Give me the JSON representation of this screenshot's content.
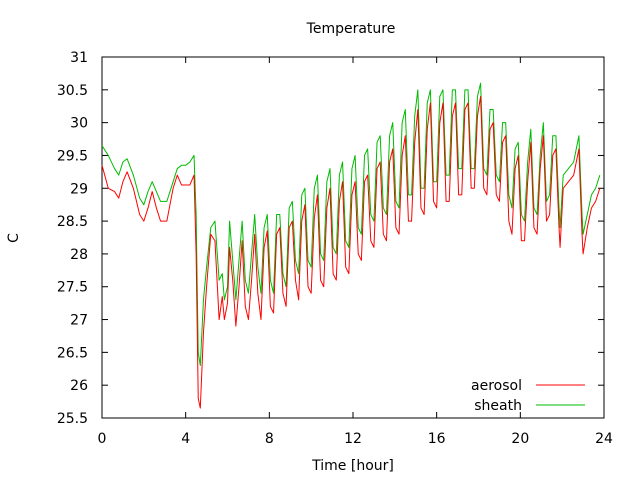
{
  "chart_data": {
    "type": "line",
    "title": "Temperature",
    "xlabel": "Time [hour]",
    "ylabel": "C",
    "xlim": [
      0,
      24
    ],
    "ylim": [
      25.5,
      31
    ],
    "x_ticks": [
      "0",
      "4",
      "8",
      "12",
      "16",
      "20",
      "24"
    ],
    "y_ticks": [
      "25.5",
      "26",
      "26.5",
      "27",
      "27.5",
      "28",
      "28.5",
      "29",
      "29.5",
      "30",
      "30.5",
      "31"
    ],
    "grid": false,
    "legend_position": "bottom-right",
    "series": [
      {
        "name": "aerosol",
        "color": "#ff0000",
        "points": [
          [
            0.0,
            29.35
          ],
          [
            0.3,
            29.0
          ],
          [
            0.6,
            28.95
          ],
          [
            0.8,
            28.85
          ],
          [
            1.0,
            29.1
          ],
          [
            1.2,
            29.25
          ],
          [
            1.5,
            29.0
          ],
          [
            1.8,
            28.6
          ],
          [
            2.0,
            28.5
          ],
          [
            2.2,
            28.7
          ],
          [
            2.4,
            28.95
          ],
          [
            2.6,
            28.7
          ],
          [
            2.8,
            28.5
          ],
          [
            3.1,
            28.5
          ],
          [
            3.4,
            29.0
          ],
          [
            3.6,
            29.2
          ],
          [
            3.8,
            29.05
          ],
          [
            4.0,
            29.05
          ],
          [
            4.2,
            29.05
          ],
          [
            4.4,
            29.2
          ],
          [
            4.5,
            28.0
          ],
          [
            4.6,
            25.8
          ],
          [
            4.7,
            25.65
          ],
          [
            4.85,
            26.8
          ],
          [
            5.0,
            27.5
          ],
          [
            5.2,
            28.3
          ],
          [
            5.4,
            28.2
          ],
          [
            5.6,
            27.0
          ],
          [
            5.75,
            27.35
          ],
          [
            5.85,
            27.0
          ],
          [
            6.0,
            27.25
          ],
          [
            6.1,
            28.1
          ],
          [
            6.25,
            27.6
          ],
          [
            6.4,
            26.9
          ],
          [
            6.55,
            27.5
          ],
          [
            6.7,
            28.2
          ],
          [
            6.85,
            27.2
          ],
          [
            7.0,
            27.0
          ],
          [
            7.15,
            27.6
          ],
          [
            7.3,
            28.3
          ],
          [
            7.45,
            27.4
          ],
          [
            7.6,
            27.0
          ],
          [
            7.75,
            28.1
          ],
          [
            7.9,
            28.35
          ],
          [
            8.05,
            27.2
          ],
          [
            8.2,
            27.1
          ],
          [
            8.35,
            28.3
          ],
          [
            8.5,
            28.4
          ],
          [
            8.65,
            27.4
          ],
          [
            8.8,
            27.2
          ],
          [
            8.95,
            28.4
          ],
          [
            9.1,
            28.5
          ],
          [
            9.25,
            27.6
          ],
          [
            9.4,
            27.3
          ],
          [
            9.55,
            28.5
          ],
          [
            9.7,
            28.75
          ],
          [
            9.85,
            27.5
          ],
          [
            10.0,
            27.4
          ],
          [
            10.15,
            28.55
          ],
          [
            10.3,
            28.9
          ],
          [
            10.45,
            27.6
          ],
          [
            10.6,
            27.5
          ],
          [
            10.75,
            28.7
          ],
          [
            10.9,
            29.0
          ],
          [
            11.05,
            27.7
          ],
          [
            11.2,
            27.6
          ],
          [
            11.35,
            28.8
          ],
          [
            11.5,
            29.1
          ],
          [
            11.65,
            27.8
          ],
          [
            11.8,
            27.7
          ],
          [
            11.95,
            28.9
          ],
          [
            12.1,
            29.1
          ],
          [
            12.25,
            28.0
          ],
          [
            12.4,
            27.9
          ],
          [
            12.55,
            29.1
          ],
          [
            12.7,
            29.2
          ],
          [
            12.85,
            28.2
          ],
          [
            13.0,
            28.1
          ],
          [
            13.15,
            29.3
          ],
          [
            13.3,
            29.4
          ],
          [
            13.45,
            28.3
          ],
          [
            13.6,
            28.2
          ],
          [
            13.75,
            29.4
          ],
          [
            13.9,
            29.6
          ],
          [
            14.05,
            28.4
          ],
          [
            14.2,
            28.3
          ],
          [
            14.35,
            29.5
          ],
          [
            14.5,
            29.8
          ],
          [
            14.65,
            28.5
          ],
          [
            14.8,
            28.5
          ],
          [
            14.95,
            29.7
          ],
          [
            15.1,
            30.2
          ],
          [
            15.25,
            28.7
          ],
          [
            15.4,
            28.6
          ],
          [
            15.55,
            29.9
          ],
          [
            15.7,
            30.3
          ],
          [
            15.85,
            28.8
          ],
          [
            16.0,
            28.7
          ],
          [
            16.15,
            30.0
          ],
          [
            16.3,
            30.3
          ],
          [
            16.45,
            28.8
          ],
          [
            16.6,
            28.8
          ],
          [
            16.75,
            30.1
          ],
          [
            16.9,
            30.3
          ],
          [
            17.05,
            28.9
          ],
          [
            17.2,
            28.9
          ],
          [
            17.35,
            30.2
          ],
          [
            17.5,
            30.3
          ],
          [
            17.65,
            29.0
          ],
          [
            17.8,
            29.0
          ],
          [
            17.95,
            30.1
          ],
          [
            18.1,
            30.4
          ],
          [
            18.25,
            29.0
          ],
          [
            18.4,
            28.9
          ],
          [
            18.55,
            29.9
          ],
          [
            18.7,
            30.0
          ],
          [
            18.85,
            28.9
          ],
          [
            19.0,
            28.8
          ],
          [
            19.15,
            29.7
          ],
          [
            19.3,
            29.8
          ],
          [
            19.45,
            28.5
          ],
          [
            19.6,
            28.3
          ],
          [
            19.75,
            29.3
          ],
          [
            19.9,
            29.5
          ],
          [
            20.05,
            28.2
          ],
          [
            20.2,
            28.2
          ],
          [
            20.35,
            29.1
          ],
          [
            20.5,
            29.7
          ],
          [
            20.65,
            28.4
          ],
          [
            20.8,
            28.3
          ],
          [
            20.95,
            29.3
          ],
          [
            21.1,
            29.8
          ],
          [
            21.25,
            28.5
          ],
          [
            21.4,
            28.6
          ],
          [
            21.55,
            29.5
          ],
          [
            21.7,
            29.6
          ],
          [
            21.85,
            28.4
          ],
          [
            21.9,
            28.1
          ],
          [
            22.05,
            29.0
          ],
          [
            22.3,
            29.1
          ],
          [
            22.55,
            29.2
          ],
          [
            22.8,
            29.6
          ],
          [
            22.95,
            28.3
          ],
          [
            23.0,
            28.0
          ],
          [
            23.2,
            28.4
          ],
          [
            23.4,
            28.7
          ],
          [
            23.6,
            28.8
          ],
          [
            23.8,
            29.0
          ]
        ]
      },
      {
        "name": "sheath",
        "color": "#00bb00",
        "points": [
          [
            0.0,
            29.65
          ],
          [
            0.3,
            29.5
          ],
          [
            0.6,
            29.3
          ],
          [
            0.8,
            29.2
          ],
          [
            1.0,
            29.4
          ],
          [
            1.2,
            29.45
          ],
          [
            1.5,
            29.2
          ],
          [
            1.8,
            28.85
          ],
          [
            2.0,
            28.75
          ],
          [
            2.2,
            28.95
          ],
          [
            2.4,
            29.1
          ],
          [
            2.6,
            28.95
          ],
          [
            2.8,
            28.8
          ],
          [
            3.1,
            28.8
          ],
          [
            3.4,
            29.1
          ],
          [
            3.6,
            29.3
          ],
          [
            3.8,
            29.35
          ],
          [
            4.0,
            29.35
          ],
          [
            4.2,
            29.4
          ],
          [
            4.4,
            29.5
          ],
          [
            4.5,
            28.6
          ],
          [
            4.6,
            26.5
          ],
          [
            4.7,
            26.3
          ],
          [
            4.85,
            27.3
          ],
          [
            5.0,
            27.8
          ],
          [
            5.2,
            28.4
          ],
          [
            5.4,
            28.5
          ],
          [
            5.6,
            27.6
          ],
          [
            5.75,
            27.7
          ],
          [
            5.85,
            27.3
          ],
          [
            6.0,
            27.5
          ],
          [
            6.1,
            28.5
          ],
          [
            6.25,
            27.9
          ],
          [
            6.4,
            27.3
          ],
          [
            6.55,
            27.9
          ],
          [
            6.7,
            28.5
          ],
          [
            6.85,
            27.6
          ],
          [
            7.0,
            27.4
          ],
          [
            7.15,
            28.0
          ],
          [
            7.3,
            28.6
          ],
          [
            7.45,
            27.8
          ],
          [
            7.6,
            27.4
          ],
          [
            7.75,
            28.4
          ],
          [
            7.9,
            28.6
          ],
          [
            8.05,
            27.6
          ],
          [
            8.2,
            27.4
          ],
          [
            8.35,
            28.6
          ],
          [
            8.5,
            28.6
          ],
          [
            8.65,
            27.7
          ],
          [
            8.8,
            27.5
          ],
          [
            8.95,
            28.7
          ],
          [
            9.1,
            28.8
          ],
          [
            9.25,
            27.9
          ],
          [
            9.4,
            27.7
          ],
          [
            9.55,
            28.9
          ],
          [
            9.7,
            29.0
          ],
          [
            9.85,
            27.9
          ],
          [
            10.0,
            27.8
          ],
          [
            10.15,
            29.0
          ],
          [
            10.3,
            29.2
          ],
          [
            10.45,
            28.0
          ],
          [
            10.6,
            27.9
          ],
          [
            10.75,
            29.1
          ],
          [
            10.9,
            29.3
          ],
          [
            11.05,
            28.1
          ],
          [
            11.2,
            28.0
          ],
          [
            11.35,
            29.2
          ],
          [
            11.5,
            29.4
          ],
          [
            11.65,
            28.2
          ],
          [
            11.8,
            28.1
          ],
          [
            11.95,
            29.3
          ],
          [
            12.1,
            29.5
          ],
          [
            12.25,
            28.4
          ],
          [
            12.4,
            28.3
          ],
          [
            12.55,
            29.5
          ],
          [
            12.7,
            29.6
          ],
          [
            12.85,
            28.6
          ],
          [
            13.0,
            28.5
          ],
          [
            13.15,
            29.7
          ],
          [
            13.3,
            29.8
          ],
          [
            13.45,
            28.7
          ],
          [
            13.6,
            28.6
          ],
          [
            13.75,
            29.8
          ],
          [
            13.9,
            30.0
          ],
          [
            14.05,
            28.8
          ],
          [
            14.2,
            28.7
          ],
          [
            14.35,
            30.0
          ],
          [
            14.5,
            30.2
          ],
          [
            14.65,
            28.9
          ],
          [
            14.8,
            28.9
          ],
          [
            14.95,
            30.1
          ],
          [
            15.1,
            30.5
          ],
          [
            15.25,
            29.0
          ],
          [
            15.4,
            29.0
          ],
          [
            15.55,
            30.3
          ],
          [
            15.7,
            30.5
          ],
          [
            15.85,
            29.1
          ],
          [
            16.0,
            29.1
          ],
          [
            16.15,
            30.4
          ],
          [
            16.3,
            30.5
          ],
          [
            16.45,
            29.2
          ],
          [
            16.6,
            29.2
          ],
          [
            16.75,
            30.5
          ],
          [
            16.9,
            30.5
          ],
          [
            17.05,
            29.3
          ],
          [
            17.2,
            29.3
          ],
          [
            17.35,
            30.5
          ],
          [
            17.5,
            30.5
          ],
          [
            17.65,
            29.3
          ],
          [
            17.8,
            29.3
          ],
          [
            17.95,
            30.4
          ],
          [
            18.1,
            30.6
          ],
          [
            18.25,
            29.3
          ],
          [
            18.4,
            29.2
          ],
          [
            18.55,
            30.2
          ],
          [
            18.7,
            30.2
          ],
          [
            18.85,
            29.2
          ],
          [
            19.0,
            29.1
          ],
          [
            19.15,
            30.0
          ],
          [
            19.3,
            30.0
          ],
          [
            19.45,
            28.9
          ],
          [
            19.6,
            28.7
          ],
          [
            19.75,
            29.6
          ],
          [
            19.9,
            29.7
          ],
          [
            20.05,
            28.6
          ],
          [
            20.2,
            28.5
          ],
          [
            20.35,
            29.4
          ],
          [
            20.5,
            29.9
          ],
          [
            20.65,
            28.7
          ],
          [
            20.8,
            28.6
          ],
          [
            20.95,
            29.5
          ],
          [
            21.1,
            30.0
          ],
          [
            21.25,
            28.8
          ],
          [
            21.4,
            28.9
          ],
          [
            21.55,
            29.8
          ],
          [
            21.7,
            29.8
          ],
          [
            21.85,
            28.7
          ],
          [
            21.9,
            28.4
          ],
          [
            22.05,
            29.2
          ],
          [
            22.3,
            29.3
          ],
          [
            22.55,
            29.4
          ],
          [
            22.8,
            29.8
          ],
          [
            22.95,
            28.6
          ],
          [
            23.0,
            28.3
          ],
          [
            23.2,
            28.6
          ],
          [
            23.4,
            28.9
          ],
          [
            23.6,
            29.0
          ],
          [
            23.8,
            29.2
          ]
        ]
      }
    ]
  }
}
